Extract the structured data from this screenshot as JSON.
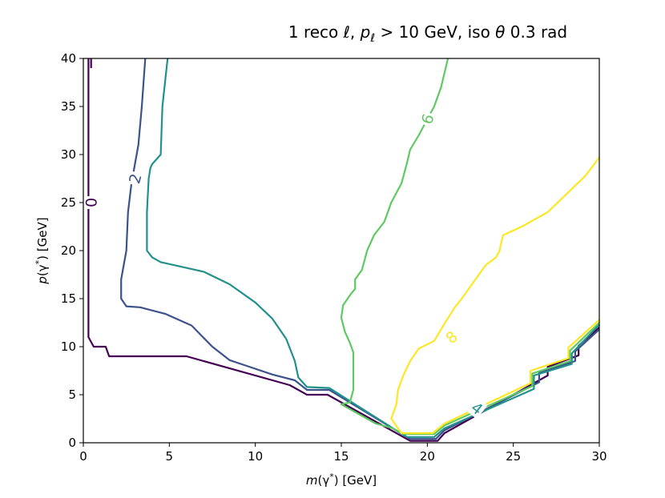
{
  "chart_data": {
    "type": "contour",
    "title": "1 reco ℓ, p_ℓ > 10 GeV, iso θ 0.3 rad",
    "title_parts": {
      "prefix": "1 reco ℓ, ",
      "var": "p",
      "sub": "ℓ",
      "middle": " > 10 GeV, iso ",
      "theta": "θ",
      "suffix": " 0.3 rad"
    },
    "xlabel": "m(γ*) [GeV]",
    "ylabel": "p(γ*) [GeV]",
    "xlabel_parts": {
      "pre": "m",
      "open": "(γ",
      "star": "*",
      "close": ") [GeV]"
    },
    "ylabel_parts": {
      "pre": "p",
      "open": "(γ",
      "star": "*",
      "close": ") [GeV]"
    },
    "xlim": [
      0,
      30
    ],
    "ylim": [
      0,
      40
    ],
    "xticks": [
      "0",
      "5",
      "10",
      "15",
      "20",
      "25",
      "30"
    ],
    "yticks": [
      "0",
      "5",
      "10",
      "15",
      "20",
      "25",
      "30",
      "35",
      "40"
    ],
    "levels": [
      {
        "level": 0,
        "color": "#440154",
        "label": "0",
        "label_at": [
          0.45,
          25
        ],
        "label_angle": -90,
        "segments": [
          [
            [
              0.45,
              39
            ],
            [
              0.45,
              40.0
            ]
          ],
          [
            [
              0.3,
              40
            ],
            [
              0.3,
              11
            ],
            [
              0.6,
              10
            ],
            [
              1.3,
              10
            ],
            [
              1.5,
              9
            ],
            [
              6,
              9
            ],
            [
              12,
              6
            ],
            [
              13,
              5
            ],
            [
              14.2,
              5
            ],
            [
              19,
              0.2
            ],
            [
              20.6,
              0.2
            ],
            [
              21,
              1
            ],
            [
              27,
              7
            ],
            [
              27,
              7.9
            ],
            [
              28.8,
              9.1
            ],
            [
              28.8,
              10.1
            ],
            [
              30,
              12
            ]
          ]
        ]
      },
      {
        "level": 2,
        "color": "#3b528b",
        "label": "2",
        "label_at": [
          3.0,
          27.5
        ],
        "label_angle": -75,
        "segments": [
          [
            [
              3.6,
              40
            ],
            [
              3.4,
              35
            ],
            [
              3.2,
              31
            ],
            [
              2.8,
              27
            ],
            [
              2.6,
              24
            ],
            [
              2.5,
              20
            ],
            [
              2.2,
              17
            ],
            [
              2.2,
              15
            ],
            [
              2.5,
              14.2
            ],
            [
              3.3,
              14.1
            ],
            [
              4.8,
              13.4
            ],
            [
              6.3,
              12.2
            ],
            [
              7.5,
              10
            ],
            [
              8.5,
              8.6
            ],
            [
              9.5,
              8
            ],
            [
              11,
              7.1
            ],
            [
              12.3,
              6.5
            ],
            [
              13,
              5.5
            ],
            [
              14.3,
              5.5
            ],
            [
              19,
              0.4
            ],
            [
              20.5,
              0.4
            ],
            [
              21,
              1.3
            ],
            [
              26.5,
              6.3
            ],
            [
              26.5,
              7.3
            ],
            [
              28.6,
              8.5
            ],
            [
              28.6,
              9.5
            ],
            [
              30,
              11.8
            ]
          ]
        ]
      },
      {
        "level": 4,
        "color": "#21918c",
        "label": "4",
        "label_at": [
          22.9,
          3.6
        ],
        "label_angle": 38,
        "segments": [
          [
            [
              4.9,
              40
            ],
            [
              4.6,
              35
            ],
            [
              4.5,
              30
            ],
            [
              4.0,
              29
            ],
            [
              3.9,
              28.6
            ],
            [
              3.8,
              27.5
            ],
            [
              3.7,
              24
            ],
            [
              3.7,
              20
            ],
            [
              4.0,
              19.3
            ],
            [
              4.5,
              18.8
            ],
            [
              5.5,
              18.4
            ],
            [
              7,
              17.8
            ],
            [
              8.5,
              16.5
            ],
            [
              10,
              14.6
            ],
            [
              11,
              12.9
            ],
            [
              11.8,
              10.8
            ],
            [
              12.3,
              8.5
            ],
            [
              12.5,
              6.8
            ],
            [
              13,
              5.8
            ],
            [
              14.3,
              5.7
            ],
            [
              18.8,
              0.6
            ],
            [
              20.4,
              0.6
            ],
            [
              21,
              1.5
            ],
            [
              26.2,
              5.6
            ],
            [
              26.2,
              7
            ],
            [
              28.4,
              8.2
            ],
            [
              28.4,
              9.3
            ],
            [
              30,
              12.3
            ]
          ]
        ]
      },
      {
        "level": 6,
        "color": "#5ec962",
        "label": "6",
        "label_at": [
          20.0,
          33.7
        ],
        "label_angle": -70,
        "segments": [
          [
            [
              21.2,
              40
            ],
            [
              20.8,
              37
            ],
            [
              20.4,
              35
            ],
            [
              19.5,
              32
            ],
            [
              19.0,
              30.5
            ],
            [
              18.8,
              29
            ],
            [
              18.5,
              27
            ],
            [
              17.9,
              25
            ],
            [
              17.5,
              23
            ],
            [
              16.9,
              21.6
            ],
            [
              16.5,
              20
            ],
            [
              16.2,
              18
            ],
            [
              15.8,
              17
            ],
            [
              15.8,
              16
            ],
            [
              15.6,
              15.6
            ],
            [
              15.1,
              14.3
            ],
            [
              15.0,
              13
            ],
            [
              15.2,
              11.6
            ],
            [
              15.5,
              10.4
            ],
            [
              15.7,
              9.4
            ],
            [
              15.7,
              5.5
            ],
            [
              15.5,
              4.2
            ],
            [
              15.0,
              4.0
            ],
            [
              17.0,
              2.0
            ],
            [
              18.0,
              1.5
            ],
            [
              18.6,
              0.9
            ],
            [
              20.4,
              0.9
            ],
            [
              21.0,
              1.8
            ],
            [
              26.1,
              5.9
            ],
            [
              26.1,
              7.2
            ],
            [
              28.3,
              8.5
            ],
            [
              28.3,
              9.6
            ],
            [
              30,
              12.5
            ]
          ]
        ]
      },
      {
        "level": 8,
        "color": "#fde725",
        "label": "8",
        "label_at": [
          21.4,
          11.0
        ],
        "label_angle": -40,
        "segments": [
          [
            [
              30,
              29.7
            ],
            [
              29.2,
              27.8
            ],
            [
              27.0,
              24.0
            ],
            [
              25.5,
              22.5
            ],
            [
              24.4,
              21.6
            ],
            [
              24.2,
              20.0
            ],
            [
              24.0,
              19.3
            ],
            [
              23.4,
              18.5
            ],
            [
              22.8,
              17.0
            ],
            [
              22.0,
              15.0
            ],
            [
              21.6,
              14.1
            ],
            [
              21.0,
              12.4
            ],
            [
              20.4,
              10.6
            ],
            [
              19.5,
              9.8
            ],
            [
              19.0,
              8.5
            ],
            [
              18.6,
              7.0
            ],
            [
              18.3,
              5.5
            ],
            [
              18.2,
              4.0
            ],
            [
              17.9,
              2.5
            ],
            [
              18.5,
              1.0
            ],
            [
              20.3,
              1.0
            ],
            [
              21.0,
              2.0
            ],
            [
              26.0,
              6.2
            ],
            [
              26.0,
              7.5
            ],
            [
              28.2,
              8.8
            ],
            [
              28.2,
              9.9
            ],
            [
              30,
              12.8
            ]
          ]
        ]
      }
    ]
  }
}
